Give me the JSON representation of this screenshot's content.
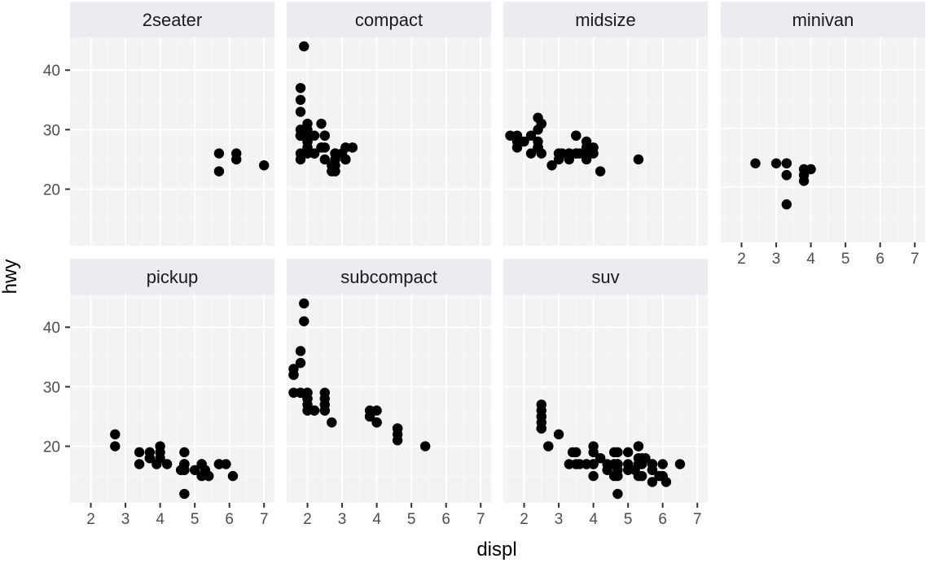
{
  "chart_data": {
    "type": "scatter",
    "facet_by": "class",
    "xlabel": "displ",
    "ylabel": "hwy",
    "xlim": [
      1.4,
      7.3
    ],
    "ylim": [
      10.5,
      45.5
    ],
    "x_ticks": [
      2,
      3,
      4,
      5,
      6,
      7
    ],
    "y_ticks": [
      20,
      30,
      40
    ],
    "x_tick_labels": [
      "2",
      "3",
      "4",
      "5",
      "6",
      "7"
    ],
    "y_tick_labels": [
      "20",
      "30",
      "40"
    ],
    "grid": true,
    "point_color": "#000000",
    "panel_bg": "#ebebeb",
    "strip_bg": "#d9d9d9",
    "panels": [
      {
        "name": "2seater",
        "points": [
          [
            5.7,
            26
          ],
          [
            5.7,
            23
          ],
          [
            6.2,
            26
          ],
          [
            6.2,
            25
          ],
          [
            7.0,
            24
          ]
        ]
      },
      {
        "name": "compact",
        "points": [
          [
            1.8,
            29
          ],
          [
            1.8,
            29
          ],
          [
            2.0,
            31
          ],
          [
            2.0,
            30
          ],
          [
            2.8,
            26
          ],
          [
            2.8,
            26
          ],
          [
            3.1,
            27
          ],
          [
            1.8,
            26
          ],
          [
            1.8,
            25
          ],
          [
            2.0,
            28
          ],
          [
            2.0,
            29
          ],
          [
            2.8,
            25
          ],
          [
            2.8,
            25
          ],
          [
            3.1,
            25
          ],
          [
            3.1,
            25
          ],
          [
            2.2,
            26
          ],
          [
            2.2,
            29
          ],
          [
            2.4,
            27
          ],
          [
            2.4,
            31
          ],
          [
            3.0,
            26
          ],
          [
            1.9,
            44
          ],
          [
            2.0,
            29
          ],
          [
            2.0,
            29
          ],
          [
            2.0,
            26
          ],
          [
            2.5,
            29
          ],
          [
            2.5,
            29
          ],
          [
            1.8,
            29
          ],
          [
            1.8,
            29
          ],
          [
            2.0,
            29
          ],
          [
            2.0,
            28
          ],
          [
            2.8,
            24
          ],
          [
            2.0,
            27
          ],
          [
            1.8,
            37
          ],
          [
            1.8,
            35
          ],
          [
            1.8,
            33
          ],
          [
            2.0,
            29
          ],
          [
            2.0,
            29
          ],
          [
            2.8,
            23
          ],
          [
            2.2,
            26
          ],
          [
            2.4,
            27
          ],
          [
            3.3,
            27
          ],
          [
            2.7,
            23
          ],
          [
            2.7,
            24
          ],
          [
            1.8,
            30
          ],
          [
            2.0,
            27
          ],
          [
            2.5,
            25
          ],
          [
            2.5,
            27
          ]
        ]
      },
      {
        "name": "midsize",
        "points": [
          [
            2.4,
            30
          ],
          [
            2.4,
            32
          ],
          [
            2.5,
            31
          ],
          [
            3.3,
            26
          ],
          [
            3.5,
            26
          ],
          [
            3.0,
            26
          ],
          [
            2.5,
            31
          ],
          [
            1.6,
            29
          ],
          [
            1.8,
            29
          ],
          [
            2.4,
            27
          ],
          [
            3.3,
            26
          ],
          [
            3.8,
            25
          ],
          [
            2.8,
            24
          ],
          [
            3.5,
            26
          ],
          [
            1.8,
            28
          ],
          [
            2.4,
            28
          ],
          [
            3.8,
            28
          ],
          [
            3.0,
            25
          ],
          [
            3.3,
            26
          ],
          [
            4.2,
            23
          ],
          [
            5.3,
            25
          ],
          [
            2.4,
            27
          ],
          [
            2.4,
            27
          ],
          [
            3.1,
            26
          ],
          [
            3.6,
            26
          ],
          [
            3.5,
            29
          ],
          [
            3.8,
            27
          ],
          [
            4.0,
            26
          ],
          [
            2.2,
            29
          ],
          [
            1.8,
            27
          ],
          [
            2.0,
            28
          ],
          [
            2.2,
            26
          ],
          [
            2.4,
            27
          ],
          [
            3.0,
            26
          ],
          [
            3.5,
            26
          ],
          [
            3.5,
            29
          ],
          [
            2.5,
            26
          ],
          [
            3.3,
            25
          ],
          [
            3.8,
            26
          ],
          [
            4.0,
            27
          ]
        ]
      },
      {
        "name": "minivan",
        "points": [
          [
            2.4,
            24
          ],
          [
            3.0,
            24
          ],
          [
            3.3,
            22
          ],
          [
            3.3,
            24
          ],
          [
            3.3,
            22
          ],
          [
            3.3,
            17
          ],
          [
            3.8,
            22
          ],
          [
            3.8,
            21
          ],
          [
            3.8,
            23
          ],
          [
            4.0,
            23
          ],
          [
            3.3,
            24
          ]
        ]
      },
      {
        "name": "pickup",
        "points": [
          [
            2.7,
            20
          ],
          [
            2.7,
            22
          ],
          [
            3.4,
            17
          ],
          [
            3.4,
            19
          ],
          [
            3.7,
            18
          ],
          [
            3.7,
            19
          ],
          [
            3.9,
            17
          ],
          [
            4.0,
            20
          ],
          [
            4.0,
            18
          ],
          [
            4.2,
            17
          ],
          [
            4.7,
            17
          ],
          [
            4.7,
            16
          ],
          [
            4.7,
            19
          ],
          [
            4.7,
            12
          ],
          [
            4.7,
            17
          ],
          [
            5.2,
            17
          ],
          [
            5.2,
            15
          ],
          [
            5.2,
            17
          ],
          [
            5.3,
            16
          ],
          [
            5.7,
            17
          ],
          [
            5.7,
            17
          ],
          [
            5.4,
            15
          ],
          [
            5.9,
            17
          ],
          [
            6.1,
            15
          ],
          [
            3.7,
            18
          ],
          [
            4.0,
            19
          ],
          [
            4.6,
            16
          ],
          [
            5.4,
            15
          ],
          [
            4.7,
            17
          ],
          [
            4.7,
            16
          ],
          [
            4.7,
            17
          ],
          [
            5.0,
            16
          ]
        ]
      },
      {
        "name": "subcompact",
        "points": [
          [
            1.6,
            33
          ],
          [
            1.6,
            32
          ],
          [
            1.8,
            34
          ],
          [
            1.8,
            36
          ],
          [
            1.9,
            44
          ],
          [
            1.9,
            41
          ],
          [
            2.0,
            29
          ],
          [
            2.0,
            28
          ],
          [
            2.0,
            29
          ],
          [
            2.0,
            26
          ],
          [
            2.5,
            29
          ],
          [
            2.5,
            28
          ],
          [
            2.7,
            24
          ],
          [
            2.2,
            26
          ],
          [
            2.5,
            26
          ],
          [
            3.8,
            26
          ],
          [
            3.8,
            25
          ],
          [
            4.0,
            26
          ],
          [
            4.0,
            24
          ],
          [
            4.6,
            21
          ],
          [
            4.6,
            22
          ],
          [
            4.6,
            23
          ],
          [
            5.4,
            20
          ],
          [
            1.6,
            29
          ],
          [
            2.0,
            27
          ],
          [
            2.2,
            26
          ],
          [
            2.5,
            26
          ],
          [
            1.8,
            29
          ],
          [
            2.0,
            28
          ],
          [
            1.6,
            32
          ],
          [
            2.5,
            27
          ],
          [
            3.8,
            25
          ],
          [
            4.0,
            24
          ],
          [
            4.6,
            23
          ],
          [
            1.8,
            29
          ]
        ]
      },
      {
        "name": "suv",
        "points": [
          [
            5.3,
            20
          ],
          [
            5.3,
            15
          ],
          [
            5.3,
            20
          ],
          [
            5.7,
            17
          ],
          [
            6.0,
            17
          ],
          [
            5.7,
            16
          ],
          [
            6.5,
            17
          ],
          [
            4.7,
            12
          ],
          [
            4.7,
            17
          ],
          [
            4.7,
            16
          ],
          [
            5.2,
            16
          ],
          [
            5.7,
            17
          ],
          [
            5.9,
            15
          ],
          [
            4.7,
            15
          ],
          [
            5.3,
            17
          ],
          [
            5.3,
            18
          ],
          [
            5.7,
            14
          ],
          [
            6.0,
            15
          ],
          [
            4.0,
            17
          ],
          [
            4.0,
            17
          ],
          [
            4.6,
            17
          ],
          [
            5.0,
            16
          ],
          [
            2.5,
            25
          ],
          [
            2.5,
            27
          ],
          [
            2.5,
            23
          ],
          [
            2.5,
            24
          ],
          [
            3.0,
            22
          ],
          [
            2.7,
            20
          ],
          [
            3.3,
            17
          ],
          [
            3.4,
            19
          ],
          [
            4.0,
            19
          ],
          [
            4.0,
            20
          ],
          [
            4.7,
            19
          ],
          [
            4.7,
            17
          ],
          [
            4.6,
            19
          ],
          [
            5.7,
            16
          ],
          [
            6.1,
            14
          ],
          [
            4.2,
            18
          ],
          [
            4.4,
            17
          ],
          [
            4.6,
            15
          ],
          [
            5.4,
            17
          ],
          [
            5.4,
            18
          ],
          [
            5.0,
            19
          ],
          [
            5.3,
            17
          ],
          [
            4.0,
            15
          ],
          [
            3.8,
            17
          ],
          [
            4.6,
            17
          ],
          [
            5.0,
            17
          ],
          [
            4.2,
            18
          ],
          [
            4.4,
            16
          ],
          [
            5.5,
            18
          ],
          [
            3.6,
            17
          ],
          [
            3.8,
            17
          ],
          [
            5.4,
            15
          ],
          [
            2.5,
            26
          ],
          [
            2.5,
            25
          ],
          [
            2.5,
            23
          ],
          [
            2.7,
            20
          ],
          [
            3.5,
            17
          ],
          [
            3.5,
            19
          ],
          [
            4.7,
            17
          ]
        ]
      }
    ]
  }
}
